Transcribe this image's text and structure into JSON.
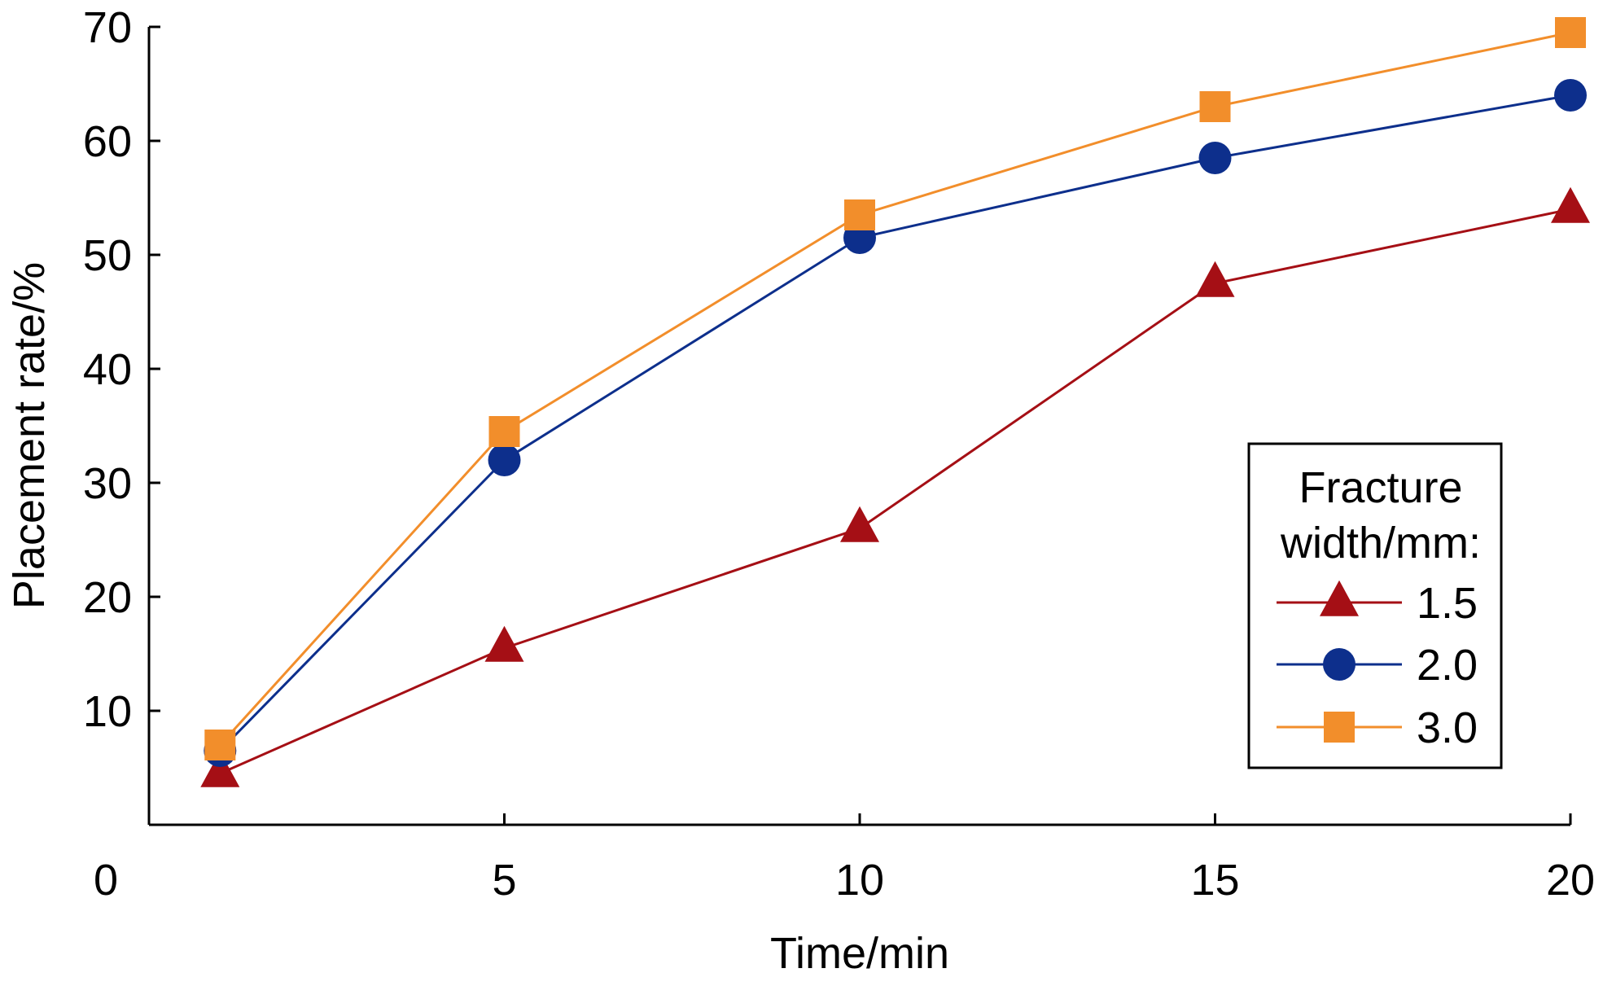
{
  "chart_data": {
    "type": "line",
    "title": "",
    "xlabel": "Time/min",
    "ylabel": "Placement rate/%",
    "xlim": [
      0,
      20
    ],
    "ylim": [
      0,
      70
    ],
    "x_ticks": [
      "0",
      "5",
      "10",
      "15",
      "20"
    ],
    "y_ticks": [
      "10",
      "20",
      "30",
      "40",
      "50",
      "60",
      "70"
    ],
    "grid": false,
    "legend": {
      "title_line1": "Fracture",
      "title_line2": "width/mm:",
      "position": "bottom-right"
    },
    "x": [
      1,
      5,
      10,
      15,
      20
    ],
    "series": [
      {
        "name": "1.5",
        "values": [
          4.5,
          15.5,
          26,
          47.5,
          54
        ],
        "marker": "triangle",
        "color": "#a50f15"
      },
      {
        "name": "2.0",
        "values": [
          6.5,
          32,
          51.5,
          58.5,
          64
        ],
        "marker": "circle",
        "color": "#0d2f8c"
      },
      {
        "name": "3.0",
        "values": [
          7,
          34.5,
          53.5,
          63,
          69.5
        ],
        "marker": "square",
        "color": "#f28e2b"
      }
    ]
  }
}
